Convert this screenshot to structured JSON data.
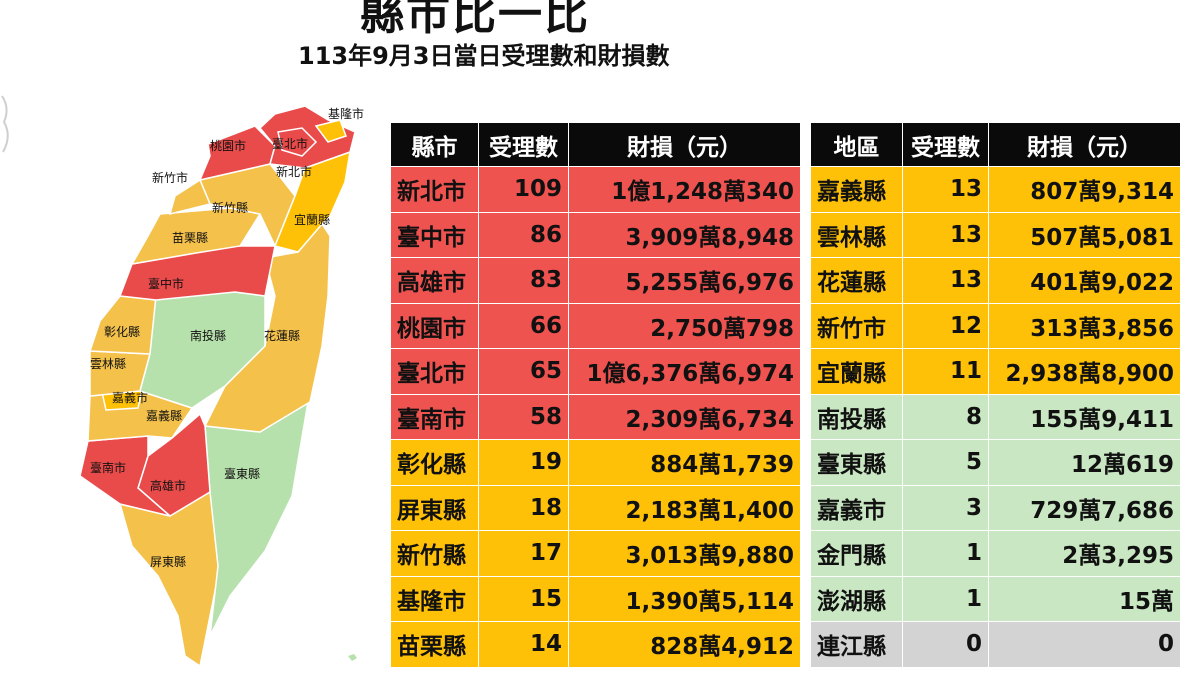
{
  "title": "縣市比一比",
  "subtitle": "113年9月3日當日受理數和財損數",
  "colors": {
    "red": "#ef5350",
    "orange": "#ffc107",
    "green": "#c9e7c2",
    "gray": "#d3d3d3",
    "header": "#0a0a0a"
  },
  "map": {
    "labels": {
      "keelung": "基隆市",
      "taipei": "臺北市",
      "taoyuan": "桃園市",
      "new_taipei": "新北市",
      "hsinchu_city": "新竹市",
      "hsinchu_county": "新竹縣",
      "yilan": "宜蘭縣",
      "miaoli": "苗栗縣",
      "taichung": "臺中市",
      "changhua": "彰化縣",
      "nantou": "南投縣",
      "hualien": "花蓮縣",
      "yunlin": "雲林縣",
      "chiayi_city": "嘉義市",
      "chiayi_county": "嘉義縣",
      "tainan": "臺南市",
      "kaohsiung": "高雄市",
      "taitung": "臺東縣",
      "pingtung": "屏東縣"
    }
  },
  "left_table": {
    "headers": [
      "縣市",
      "受理數",
      "財損（元）"
    ],
    "rows": [
      {
        "name": "新北市",
        "count": "109",
        "loss": "1億1,248萬340",
        "level": "red"
      },
      {
        "name": "臺中市",
        "count": "86",
        "loss": "3,909萬8,948",
        "level": "red"
      },
      {
        "name": "高雄市",
        "count": "83",
        "loss": "5,255萬6,976",
        "level": "red"
      },
      {
        "name": "桃園市",
        "count": "66",
        "loss": "2,750萬798",
        "level": "red"
      },
      {
        "name": "臺北市",
        "count": "65",
        "loss": "1億6,376萬6,974",
        "level": "red"
      },
      {
        "name": "臺南市",
        "count": "58",
        "loss": "2,309萬6,734",
        "level": "red"
      },
      {
        "name": "彰化縣",
        "count": "19",
        "loss": "884萬1,739",
        "level": "orange"
      },
      {
        "name": "屏東縣",
        "count": "18",
        "loss": "2,183萬1,400",
        "level": "orange"
      },
      {
        "name": "新竹縣",
        "count": "17",
        "loss": "3,013萬9,880",
        "level": "orange"
      },
      {
        "name": "基隆市",
        "count": "15",
        "loss": "1,390萬5,114",
        "level": "orange"
      },
      {
        "name": "苗栗縣",
        "count": "14",
        "loss": "828萬4,912",
        "level": "orange"
      }
    ]
  },
  "right_table": {
    "headers": [
      "地區",
      "受理數",
      "財損（元）"
    ],
    "rows": [
      {
        "name": "嘉義縣",
        "count": "13",
        "loss": "807萬9,314",
        "level": "orange"
      },
      {
        "name": "雲林縣",
        "count": "13",
        "loss": "507萬5,081",
        "level": "orange"
      },
      {
        "name": "花蓮縣",
        "count": "13",
        "loss": "401萬9,022",
        "level": "orange"
      },
      {
        "name": "新竹市",
        "count": "12",
        "loss": "313萬3,856",
        "level": "orange"
      },
      {
        "name": "宜蘭縣",
        "count": "11",
        "loss": "2,938萬8,900",
        "level": "orange"
      },
      {
        "name": "南投縣",
        "count": "8",
        "loss": "155萬9,411",
        "level": "green"
      },
      {
        "name": "臺東縣",
        "count": "5",
        "loss": "12萬619",
        "level": "green"
      },
      {
        "name": "嘉義市",
        "count": "3",
        "loss": "729萬7,686",
        "level": "green"
      },
      {
        "name": "金門縣",
        "count": "1",
        "loss": "2萬3,295",
        "level": "green"
      },
      {
        "name": "澎湖縣",
        "count": "1",
        "loss": "15萬",
        "level": "green"
      },
      {
        "name": "連江縣",
        "count": "0",
        "loss": "0",
        "level": "gray"
      }
    ]
  }
}
